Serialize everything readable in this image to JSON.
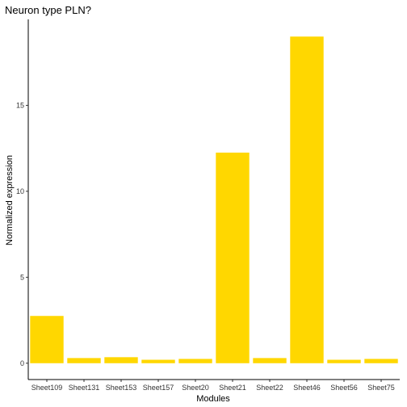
{
  "chart_data": {
    "type": "bar",
    "title": "Neuron type PLN?",
    "xlabel": "Modules",
    "ylabel": "Normalized expression",
    "categories": [
      "Sheet109",
      "Sheet131",
      "Sheet153",
      "Sheet157",
      "Sheet20",
      "Sheet21",
      "Sheet22",
      "Sheet46",
      "Sheet56",
      "Sheet75"
    ],
    "values": [
      2.75,
      0.3,
      0.35,
      0.2,
      0.25,
      12.25,
      0.3,
      19.0,
      0.2,
      0.25
    ],
    "ylim": [
      -0.95,
      20.0
    ],
    "yticks": [
      0,
      5,
      10,
      15
    ],
    "bar_color": "#FFD700",
    "grid": false,
    "legend": "none"
  }
}
